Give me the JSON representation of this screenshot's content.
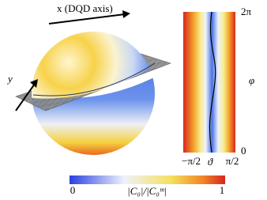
{
  "sphere_panel": {
    "x_axis_label": "x (DQD axis)",
    "y_axis_label": "y"
  },
  "map_panel": {
    "phi_label": "φ",
    "phi_ticks": [
      "0",
      "2π"
    ],
    "theta_label": "ϑ",
    "theta_ticks": [
      "−π/2",
      "π/2"
    ]
  },
  "colorbar": {
    "label": "|C₀|/|C₀ᵐ|",
    "ticks": [
      0,
      1
    ]
  }
}
